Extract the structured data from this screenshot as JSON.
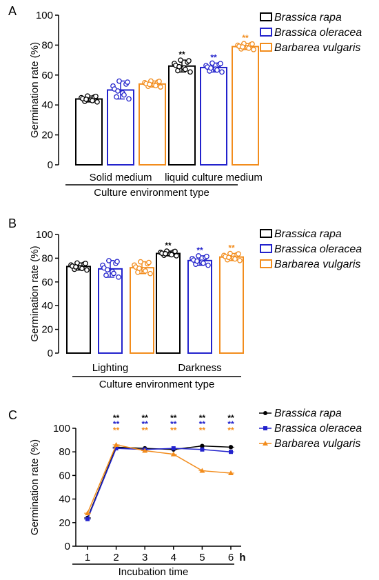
{
  "colors": {
    "rapa": "#000000",
    "oleracea": "#2222cc",
    "vulgaris": "#f28c1c"
  },
  "legend": [
    "Brassica rapa",
    "Brassica oleracea",
    "Barbarea vulgaris"
  ],
  "chart_data": [
    {
      "panel": "A",
      "type": "bar",
      "ylabel": "Germination rate (%)",
      "xlabel": "Culture environment type",
      "ylim": [
        0,
        100
      ],
      "yticks": [
        "0",
        "20",
        "40",
        "60",
        "80",
        "100"
      ],
      "categories": [
        "Solid medium",
        "liquid culture medium"
      ],
      "series": [
        {
          "name": "Brassica rapa",
          "values": [
            44,
            66
          ],
          "err": [
            2,
            4
          ],
          "stars": [
            "",
            "**"
          ]
        },
        {
          "name": "Brassica oleracea",
          "values": [
            50,
            65
          ],
          "err": [
            6,
            3
          ],
          "stars": [
            "",
            "**"
          ]
        },
        {
          "name": "Barbarea vulgaris",
          "values": [
            54,
            79
          ],
          "err": [
            2,
            2
          ],
          "stars": [
            "",
            "**"
          ]
        }
      ]
    },
    {
      "panel": "B",
      "type": "bar",
      "ylabel": "Germination rate (%)",
      "xlabel": "Culture environment type",
      "ylim": [
        0,
        100
      ],
      "yticks": [
        "0",
        "20",
        "40",
        "60",
        "80",
        "100"
      ],
      "categories": [
        "Lighting",
        "Darkness"
      ],
      "series": [
        {
          "name": "Brassica rapa",
          "values": [
            73,
            84
          ],
          "err": [
            3,
            2
          ],
          "stars": [
            "",
            "**"
          ]
        },
        {
          "name": "Brassica oleracea",
          "values": [
            71,
            78
          ],
          "err": [
            7,
            4
          ],
          "stars": [
            "",
            "**"
          ]
        },
        {
          "name": "Barbarea vulgaris",
          "values": [
            72,
            81
          ],
          "err": [
            5,
            3
          ],
          "stars": [
            "",
            "**"
          ]
        }
      ]
    },
    {
      "panel": "C",
      "type": "line",
      "ylabel": "Germination rate (%)",
      "xlabel": "Incubation time",
      "x_unit": "h",
      "ylim": [
        0,
        100
      ],
      "yticks": [
        "0",
        "20",
        "40",
        "60",
        "80",
        "100"
      ],
      "x": [
        1,
        2,
        3,
        4,
        5,
        6
      ],
      "series": [
        {
          "name": "Brassica rapa",
          "values": [
            24,
            84,
            83,
            82,
            85,
            84
          ]
        },
        {
          "name": "Brassica oleracea",
          "values": [
            23,
            83,
            82,
            83,
            82,
            80
          ]
        },
        {
          "name": "Barbarea vulgaris",
          "values": [
            28,
            86,
            81,
            78,
            64,
            62
          ]
        }
      ],
      "stars": [
        "",
        "**",
        "**",
        "**",
        "**",
        "**"
      ]
    }
  ]
}
